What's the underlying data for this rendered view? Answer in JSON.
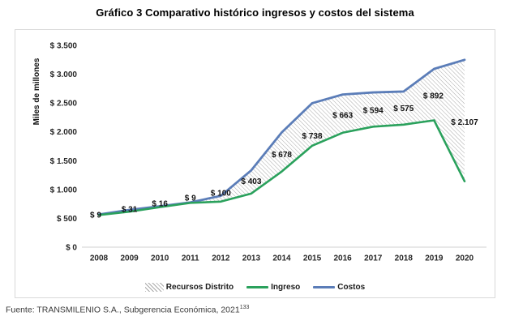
{
  "title": "Gráfico 3 Comparativo histórico ingresos y costos del sistema",
  "footer": {
    "text": "Fuente: TRANSMILENIO S.A., Subgerencia Económica, 2021",
    "footnote_ref": "133"
  },
  "chart_data": {
    "type": "line",
    "title": "Gráfico 3 Comparativo histórico ingresos y costos del sistema",
    "xlabel": "",
    "ylabel": "Miles de millones",
    "ylim": [
      0,
      3500
    ],
    "ytick_step": 500,
    "ytick_labels": [
      "$ 0",
      "$ 500",
      "$ 1.000",
      "$ 1.500",
      "$ 2.000",
      "$ 2.500",
      "$ 3.000",
      "$ 3.500"
    ],
    "grid": false,
    "legend_position": "bottom",
    "categories": [
      "2008",
      "2009",
      "2010",
      "2011",
      "2012",
      "2013",
      "2014",
      "2015",
      "2016",
      "2017",
      "2018",
      "2019",
      "2020"
    ],
    "series": [
      {
        "name": "Ingreso",
        "color": "#2aa15c",
        "values": [
          558,
          615,
          694,
          768,
          790,
          930,
          1312,
          1760,
          1985,
          2090,
          2125,
          2200,
          1143
        ]
      },
      {
        "name": "Costos",
        "color": "#5b7db8",
        "values": [
          567,
          646,
          710,
          777,
          890,
          1333,
          1990,
          2498,
          2648,
          2684,
          2700,
          3092,
          3250
        ]
      },
      {
        "name": "Recursos Distrito",
        "type": "area-between",
        "values": [
          9,
          31,
          16,
          9,
          100,
          403,
          678,
          738,
          663,
          594,
          575,
          892,
          2107
        ],
        "labels": [
          "$ 9",
          "$ 31",
          "$ 16",
          "$ 9",
          "$ 100",
          "$ 403",
          "$ 678",
          "$ 738",
          "$ 663",
          "$ 594",
          "$ 575",
          "$ 892",
          "$ 2.107"
        ]
      }
    ],
    "hatch_color": "#a8a8a8",
    "axis_line_color": "#d9d9d9",
    "label_dx": [
      -4,
      0,
      0,
      0,
      0,
      0,
      0,
      0,
      0,
      0,
      0,
      -1,
      0
    ],
    "label_dy": [
      0,
      -2,
      -4,
      -6,
      -7,
      -1,
      3,
      14,
      2,
      1,
      0,
      1,
      2
    ],
    "legend": [
      {
        "label": "Recursos Distrito",
        "swatch": "hatch"
      },
      {
        "label": "Ingreso",
        "swatch": "line",
        "color": "#2aa15c"
      },
      {
        "label": "Costos",
        "swatch": "line",
        "color": "#5b7db8"
      }
    ]
  }
}
